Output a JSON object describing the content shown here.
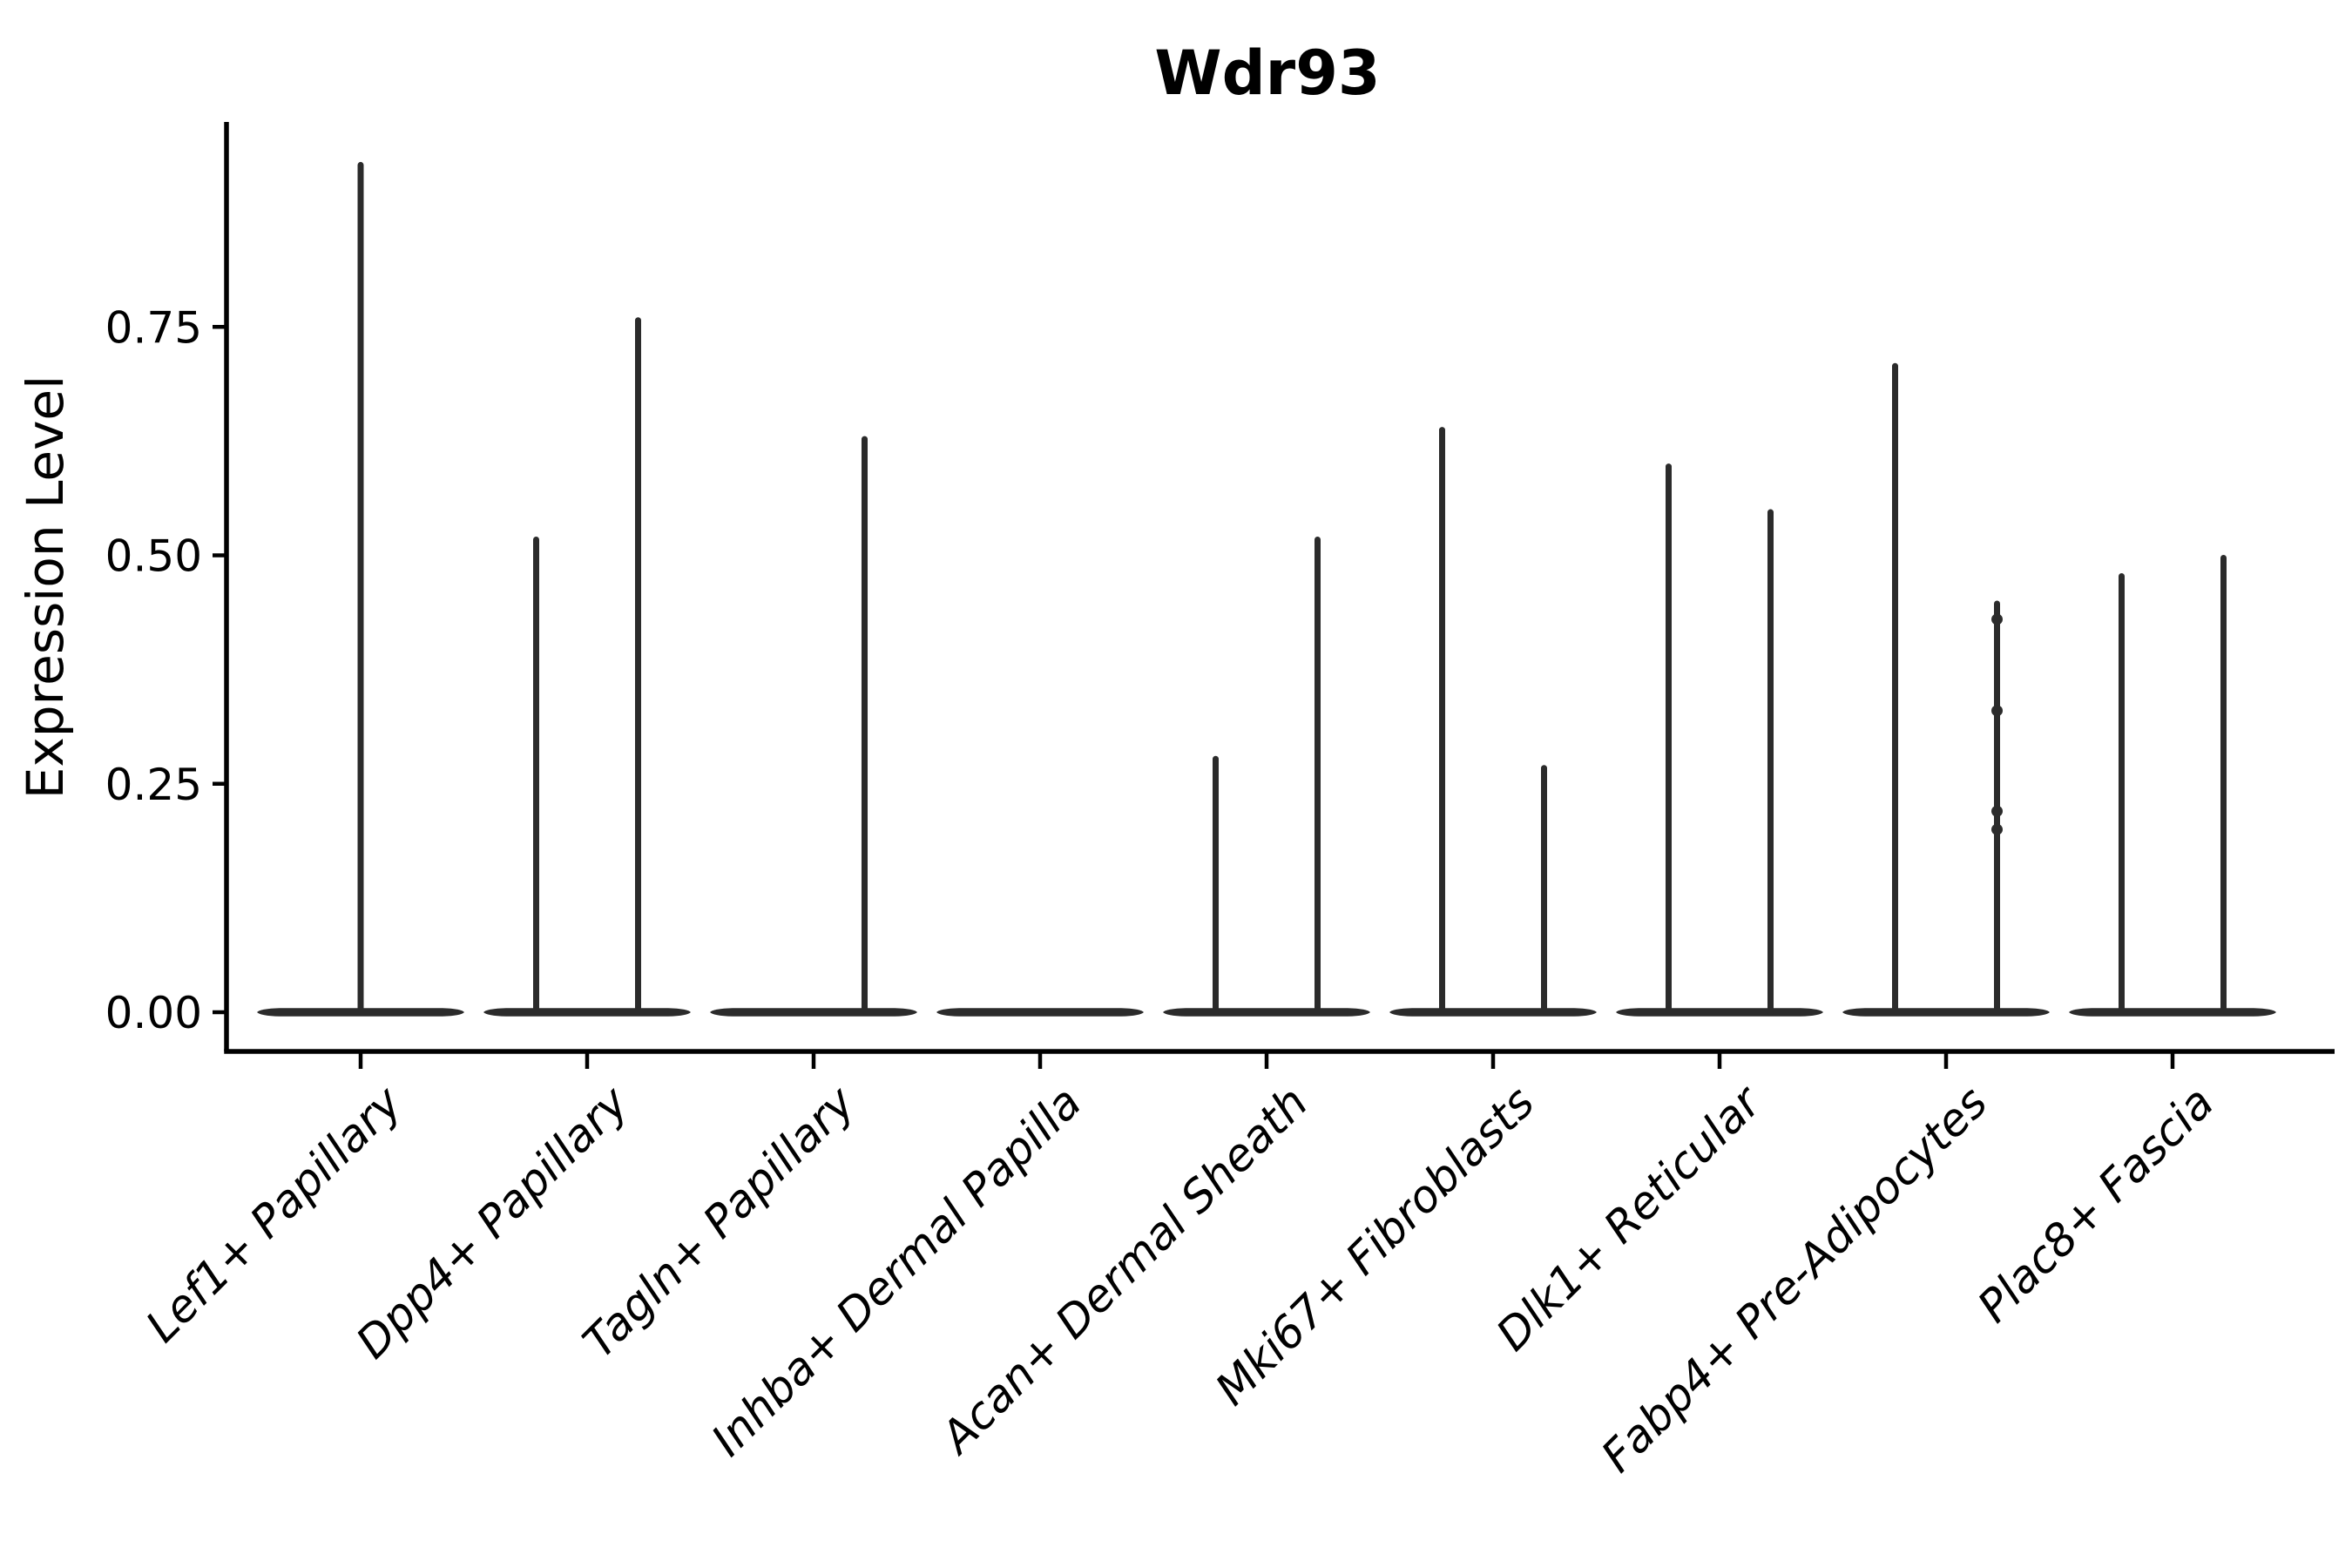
{
  "chart_data": {
    "type": "violin",
    "title": "Wdr93",
    "xlabel": "",
    "ylabel": "Expression Level",
    "yticks": [
      0.0,
      0.25,
      0.5,
      0.75
    ],
    "ytick_labels": [
      "0.00",
      "0.25",
      "0.50",
      "0.75"
    ],
    "ylim": [
      -0.043,
      0.974
    ],
    "grid": false,
    "legend": "none",
    "categories": [
      "Lef1+ Papillary",
      "Dpp4+ Papillary",
      "Tagln+ Papillary",
      "Inhba+ Dermal Papilla",
      "Acan+ Dermal Sheath",
      "Mki67+ Fibroblasts",
      "Dlk1+ Reticular",
      "Fabp4+ Pre-Adipocytes",
      "Plac8+ Fascia"
    ],
    "violins": [
      {
        "category": "Lef1+ Papillary",
        "baseline": 0.0,
        "spikes": [
          {
            "offset": 0.0,
            "max": 0.93
          }
        ]
      },
      {
        "category": "Dpp4+ Papillary",
        "baseline": 0.0,
        "spikes": [
          {
            "offset": -0.225,
            "max": 0.52
          },
          {
            "offset": 0.225,
            "max": 0.76
          }
        ]
      },
      {
        "category": "Tagln+ Papillary",
        "baseline": 0.0,
        "spikes": [
          {
            "offset": 0.225,
            "max": 0.63
          }
        ]
      },
      {
        "category": "Inhba+ Dermal Papilla",
        "baseline": 0.0,
        "spikes": []
      },
      {
        "category": "Acan+ Dermal Sheath",
        "baseline": 0.0,
        "spikes": [
          {
            "offset": -0.225,
            "max": 0.28
          },
          {
            "offset": 0.225,
            "max": 0.52
          }
        ]
      },
      {
        "category": "Mki67+ Fibroblasts",
        "baseline": 0.0,
        "spikes": [
          {
            "offset": -0.225,
            "max": 0.64
          },
          {
            "offset": 0.225,
            "max": 0.27
          }
        ]
      },
      {
        "category": "Dlk1+ Reticular",
        "baseline": 0.0,
        "spikes": [
          {
            "offset": -0.225,
            "max": 0.6
          },
          {
            "offset": 0.225,
            "max": 0.55
          }
        ]
      },
      {
        "category": "Fabp4+ Pre-Adipocytes",
        "baseline": 0.0,
        "spikes": [
          {
            "offset": -0.225,
            "max": 0.71
          },
          {
            "offset": 0.225,
            "max": 0.45,
            "points": [
              0.43,
              0.33,
              0.22,
              0.2
            ]
          }
        ]
      },
      {
        "category": "Plac8+ Fascia",
        "baseline": 0.0,
        "spikes": [
          {
            "offset": -0.225,
            "max": 0.48
          },
          {
            "offset": 0.225,
            "max": 0.5
          }
        ]
      }
    ],
    "colors": {
      "violin_line": "#2b2b2b",
      "axis": "#000000",
      "text": "#000000",
      "background": "#ffffff"
    }
  }
}
